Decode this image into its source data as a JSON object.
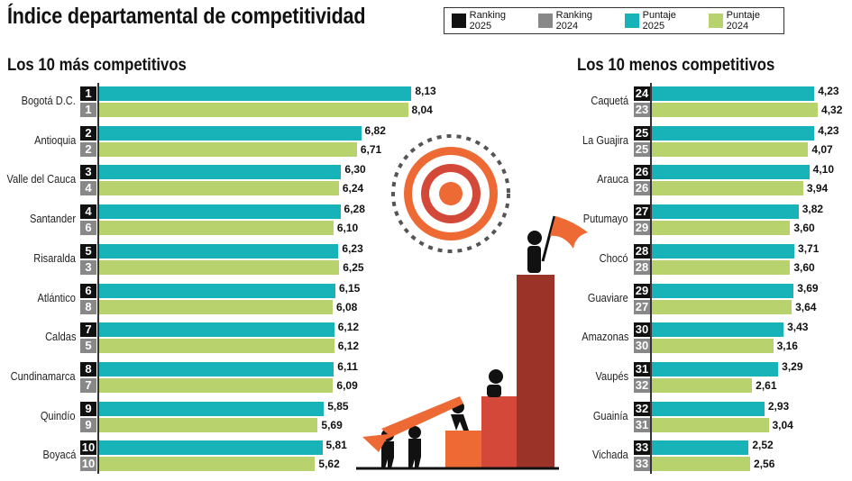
{
  "title": "Índice departamental de competitividad",
  "legend": [
    {
      "label": "Ranking 2025",
      "color": "#111111"
    },
    {
      "label": "Ranking 2024",
      "color": "#888888"
    },
    {
      "label": "Puntaje 2025",
      "color": "#17b3b8"
    },
    {
      "label": "Puntaje 2024",
      "color": "#b8d36e"
    }
  ],
  "chart_data": [
    {
      "type": "bar",
      "title": "Los 10 más competitivos",
      "series_names": [
        "Puntaje 2025",
        "Puntaje 2024"
      ],
      "rows": [
        {
          "name": "Bogotá D.C.",
          "rank2025": "1",
          "rank2024": "1",
          "score2025": "8,13",
          "score2024": "8,04"
        },
        {
          "name": "Antioquia",
          "rank2025": "2",
          "rank2024": "2",
          "score2025": "6,82",
          "score2024": "6,71"
        },
        {
          "name": "Valle del Cauca",
          "rank2025": "3",
          "rank2024": "4",
          "score2025": "6,30",
          "score2024": "6,24"
        },
        {
          "name": "Santander",
          "rank2025": "4",
          "rank2024": "6",
          "score2025": "6,28",
          "score2024": "6,10"
        },
        {
          "name": "Risaralda",
          "rank2025": "5",
          "rank2024": "3",
          "score2025": "6,23",
          "score2024": "6,25"
        },
        {
          "name": "Atlántico",
          "rank2025": "6",
          "rank2024": "8",
          "score2025": "6,15",
          "score2024": "6,08"
        },
        {
          "name": "Caldas",
          "rank2025": "7",
          "rank2024": "5",
          "score2025": "6,12",
          "score2024": "6,12"
        },
        {
          "name": "Cundinamarca",
          "rank2025": "8",
          "rank2024": "7",
          "score2025": "6,11",
          "score2024": "6,09"
        },
        {
          "name": "Quindío",
          "rank2025": "9",
          "rank2024": "9",
          "score2025": "5,85",
          "score2024": "5,69"
        },
        {
          "name": "Boyacá",
          "rank2025": "10",
          "rank2024": "10",
          "score2025": "5,81",
          "score2024": "5,62"
        }
      ]
    },
    {
      "type": "bar",
      "title": "Los 10 menos competitivos",
      "series_names": [
        "Puntaje 2025",
        "Puntaje 2024"
      ],
      "rows": [
        {
          "name": "Caquetá",
          "rank2025": "24",
          "rank2024": "23",
          "score2025": "4,23",
          "score2024": "4,32"
        },
        {
          "name": "La Guajira",
          "rank2025": "25",
          "rank2024": "25",
          "score2025": "4,23",
          "score2024": "4,07"
        },
        {
          "name": "Arauca",
          "rank2025": "26",
          "rank2024": "26",
          "score2025": "4,10",
          "score2024": "3,94"
        },
        {
          "name": "Putumayo",
          "rank2025": "27",
          "rank2024": "29",
          "score2025": "3,82",
          "score2024": "3,60"
        },
        {
          "name": "Chocó",
          "rank2025": "28",
          "rank2024": "28",
          "score2025": "3,71",
          "score2024": "3,60"
        },
        {
          "name": "Guaviare",
          "rank2025": "29",
          "rank2024": "27",
          "score2025": "3,69",
          "score2024": "3,64"
        },
        {
          "name": "Amazonas",
          "rank2025": "30",
          "rank2024": "30",
          "score2025": "3,43",
          "score2024": "3,16"
        },
        {
          "name": "Vaupés",
          "rank2025": "31",
          "rank2024": "32",
          "score2025": "3,29",
          "score2024": "2,61"
        },
        {
          "name": "Guainía",
          "rank2025": "32",
          "rank2024": "31",
          "score2025": "2,93",
          "score2024": "3,04"
        },
        {
          "name": "Vichada",
          "rank2025": "33",
          "rank2024": "33",
          "score2025": "2,52",
          "score2024": "2,56"
        }
      ]
    }
  ]
}
